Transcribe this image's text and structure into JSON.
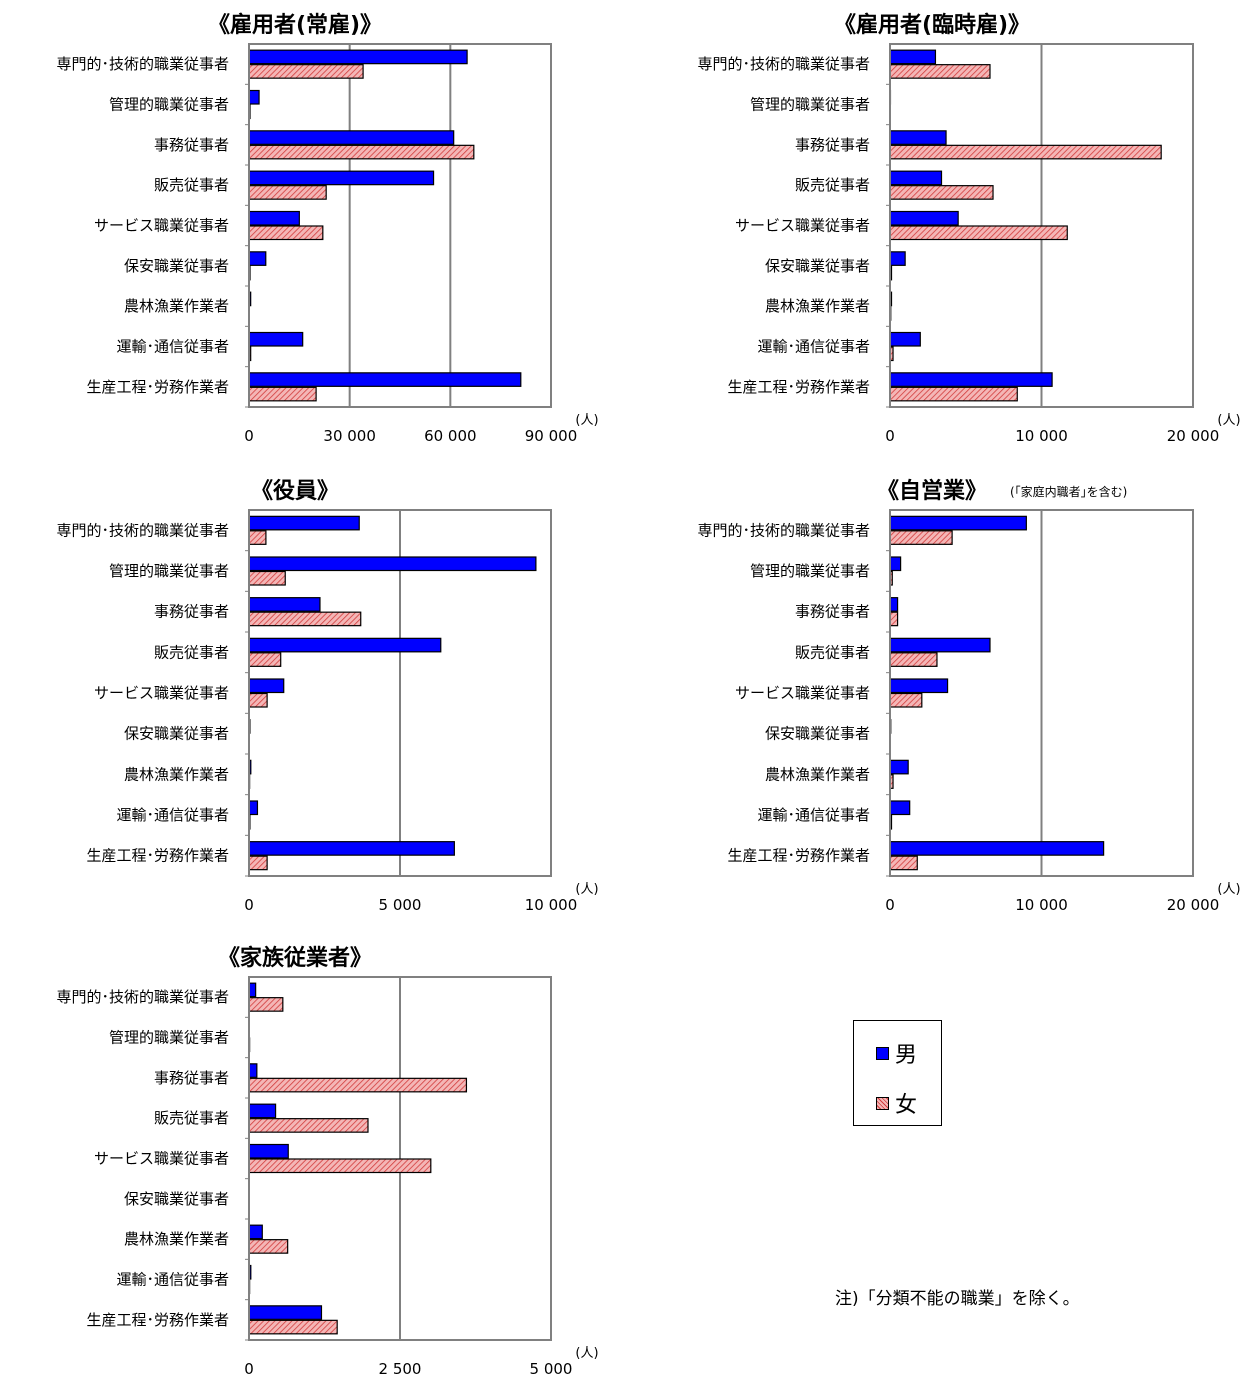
{
  "colors": {
    "male": "#0000ff",
    "female_fill": "#f4b6b6",
    "female_hatch": "#d23c3c",
    "axis": "#808080"
  },
  "legend": {
    "male": "男",
    "female": "女"
  },
  "note": "注)「分類不能の職業」を除く。",
  "chart_data": [
    {
      "type": "bar",
      "title": "《雇用者(常雇)》",
      "subtitle": "",
      "unit": "(人)",
      "categories": [
        "専門的･技術的職業従事者",
        "管理的職業従事者",
        "事務従事者",
        "販売従事者",
        "サービス職業従事者",
        "保安職業従事者",
        "農林漁業作業者",
        "運輸･通信従事者",
        "生産工程･労務作業者"
      ],
      "series": [
        {
          "name": "男",
          "values": [
            65000,
            3000,
            61000,
            55000,
            15000,
            5000,
            500,
            16000,
            81000
          ]
        },
        {
          "name": "女",
          "values": [
            34000,
            300,
            67000,
            23000,
            22000,
            300,
            100,
            500,
            20000
          ]
        }
      ],
      "xlim": [
        0,
        90000
      ],
      "ticks": [
        0,
        30000,
        60000,
        90000
      ],
      "tick_labels": [
        "0",
        "30 000",
        "60 000",
        "90 000"
      ]
    },
    {
      "type": "bar",
      "title": "《雇用者(臨時雇)》",
      "subtitle": "",
      "unit": "(人)",
      "categories": [
        "専門的･技術的職業従事者",
        "管理的職業従事者",
        "事務従事者",
        "販売従事者",
        "サービス職業従事者",
        "保安職業従事者",
        "農林漁業作業者",
        "運輸･通信従事者",
        "生産工程･労務作業者"
      ],
      "series": [
        {
          "name": "男",
          "values": [
            3000,
            30,
            3700,
            3400,
            4500,
            1000,
            100,
            2000,
            10700
          ]
        },
        {
          "name": "女",
          "values": [
            6600,
            10,
            17900,
            6800,
            11700,
            100,
            50,
            200,
            8400
          ]
        }
      ],
      "xlim": [
        0,
        20000
      ],
      "ticks": [
        0,
        10000,
        20000
      ],
      "tick_labels": [
        "0",
        "10 000",
        "20 000"
      ]
    },
    {
      "type": "bar",
      "title": "《役員》",
      "subtitle": "",
      "unit": "(人)",
      "categories": [
        "専門的･技術的職業従事者",
        "管理的職業従事者",
        "事務従事者",
        "販売従事者",
        "サービス職業従事者",
        "保安職業従事者",
        "農林漁業作業者",
        "運輸･通信従事者",
        "生産工程･労務作業者"
      ],
      "series": [
        {
          "name": "男",
          "values": [
            3650,
            9500,
            2350,
            6350,
            1150,
            30,
            60,
            280,
            6800
          ]
        },
        {
          "name": "女",
          "values": [
            560,
            1200,
            3700,
            1050,
            600,
            10,
            20,
            30,
            600
          ]
        }
      ],
      "xlim": [
        0,
        10000
      ],
      "ticks": [
        0,
        5000,
        10000
      ],
      "tick_labels": [
        "0",
        "5 000",
        "10 000"
      ]
    },
    {
      "type": "bar",
      "title": "《自営業》",
      "subtitle": "(｢家庭内職者｣を含む)",
      "unit": "(人)",
      "categories": [
        "専門的･技術的職業従事者",
        "管理的職業従事者",
        "事務従事者",
        "販売従事者",
        "サービス職業従事者",
        "保安職業従事者",
        "農林漁業作業者",
        "運輸･通信従事者",
        "生産工程･労務作業者"
      ],
      "series": [
        {
          "name": "男",
          "values": [
            9000,
            700,
            500,
            6600,
            3800,
            50,
            1200,
            1300,
            14100
          ]
        },
        {
          "name": "女",
          "values": [
            4100,
            150,
            500,
            3100,
            2100,
            20,
            200,
            100,
            1800
          ]
        }
      ],
      "xlim": [
        0,
        20000
      ],
      "ticks": [
        0,
        10000,
        20000
      ],
      "tick_labels": [
        "0",
        "10 000",
        "20 000"
      ]
    },
    {
      "type": "bar",
      "title": "《家族従業者》",
      "subtitle": "",
      "unit": "(人)",
      "categories": [
        "専門的･技術的職業従事者",
        "管理的職業従事者",
        "事務従事者",
        "販売従事者",
        "サービス職業従事者",
        "保安職業従事者",
        "農林漁業作業者",
        "運輸･通信従事者",
        "生産工程･労務作業者"
      ],
      "series": [
        {
          "name": "男",
          "values": [
            110,
            5,
            130,
            440,
            650,
            0,
            220,
            30,
            1200
          ]
        },
        {
          "name": "女",
          "values": [
            560,
            10,
            3600,
            1970,
            3010,
            0,
            640,
            10,
            1460
          ]
        }
      ],
      "xlim": [
        0,
        5000
      ],
      "ticks": [
        0,
        2500,
        5000
      ],
      "tick_labels": [
        "0",
        "2 500",
        "5 000"
      ]
    }
  ]
}
